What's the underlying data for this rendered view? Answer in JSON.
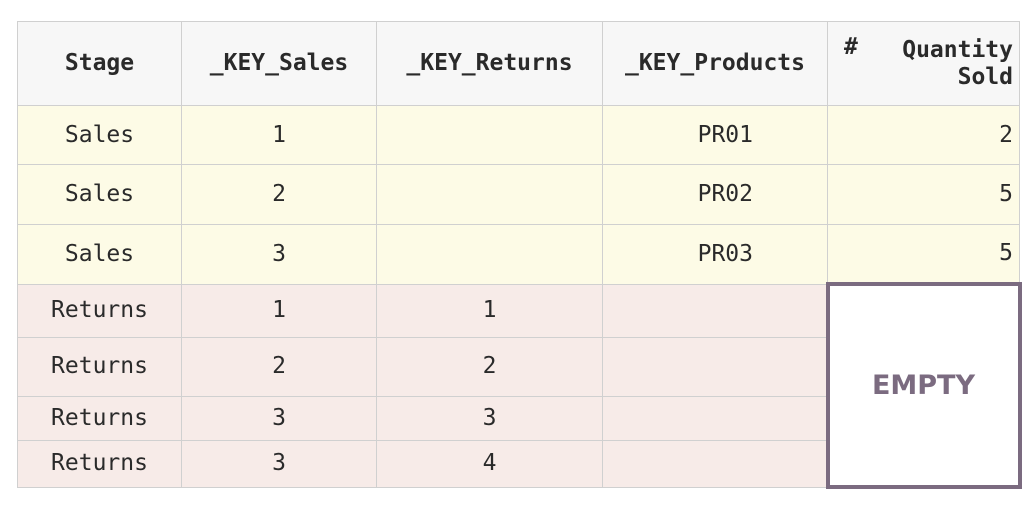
{
  "table": {
    "headers": {
      "stage": "Stage",
      "key_sales": "_KEY_Sales",
      "key_returns": "_KEY_Returns",
      "key_products": "_KEY_Products",
      "quantity_sold_line1": "Quantity",
      "quantity_sold_line2": "Sold"
    },
    "numeric_type_icon": "#",
    "sales_rows": [
      {
        "stage": "Sales",
        "key_sales": "1",
        "key_returns": "",
        "key_products": "PR01",
        "quantity_sold": "2"
      },
      {
        "stage": "Sales",
        "key_sales": "2",
        "key_returns": "",
        "key_products": "PR02",
        "quantity_sold": "5"
      },
      {
        "stage": "Sales",
        "key_sales": "3",
        "key_returns": "",
        "key_products": "PR03",
        "quantity_sold": "5"
      }
    ],
    "returns_rows": [
      {
        "stage": "Returns",
        "key_sales": "1",
        "key_returns": "1",
        "key_products": ""
      },
      {
        "stage": "Returns",
        "key_sales": "2",
        "key_returns": "2",
        "key_products": ""
      },
      {
        "stage": "Returns",
        "key_sales": "3",
        "key_returns": "3",
        "key_products": ""
      },
      {
        "stage": "Returns",
        "key_sales": "3",
        "key_returns": "4",
        "key_products": ""
      }
    ],
    "empty_label": "EMPTY"
  },
  "colors": {
    "header_bg": "#f7f7f7",
    "sales_row_bg": "#fdfbe6",
    "returns_row_bg": "#f7ebe8",
    "empty_accent": "#7b6b80",
    "grid_line": "#d0d0d0"
  }
}
